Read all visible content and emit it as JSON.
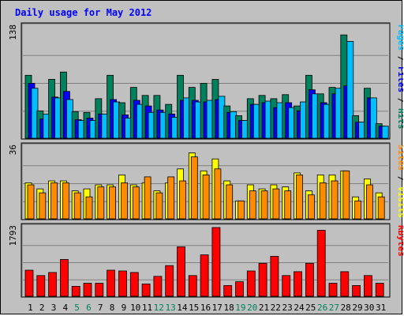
{
  "chart_data": {
    "type": "bar",
    "title": "Daily usage for May 2012",
    "categories": [
      "1",
      "2",
      "3",
      "4",
      "5",
      "6",
      "7",
      "8",
      "9",
      "10",
      "11",
      "12",
      "13",
      "14",
      "15",
      "16",
      "17",
      "18",
      "19",
      "20",
      "21",
      "22",
      "23",
      "24",
      "25",
      "26",
      "27",
      "28",
      "29",
      "30",
      "31"
    ],
    "weekend_days": [
      "5",
      "6",
      "12",
      "13",
      "19",
      "20",
      "26",
      "27"
    ],
    "grid": true,
    "panels": [
      {
        "id": "top",
        "ymax_label": "138",
        "ymax": 138,
        "series": [
          {
            "name": "Hits",
            "color": "#00805c",
            "values": [
              78,
              34,
              73,
              82,
              33,
              32,
              49,
              78,
              44,
              63,
              53,
              53,
              42,
              78,
              63,
              68,
              73,
              40,
              28,
              49,
              53,
              49,
              54,
              40,
              78,
              55,
              63,
              128,
              28,
              62,
              18
            ]
          },
          {
            "name": "Files",
            "color": "#0000ff",
            "values": [
              68,
              24,
              51,
              58,
              23,
              25,
              30,
              48,
              29,
              47,
              40,
              35,
              30,
              47,
              47,
              45,
              48,
              32,
              22,
              42,
              44,
              38,
              44,
              34,
              60,
              44,
              55,
              65,
              20,
              50,
              15
            ]
          },
          {
            "name": "Pages",
            "color": "#00bfff",
            "values": [
              62,
              30,
              50,
              48,
              22,
              22,
              30,
              45,
              25,
              42,
              32,
              32,
              26,
              50,
              45,
              47,
              52,
              33,
              22,
              42,
              46,
              44,
              38,
              45,
              55,
              42,
              62,
              120,
              20,
              50,
              15
            ]
          }
        ]
      },
      {
        "id": "middle",
        "ymax_label": "36",
        "ymax": 36,
        "series": [
          {
            "name": "Visits",
            "color": "#ffff00",
            "values": [
              18,
              15,
              19,
              19,
              14,
              15,
              17,
              17,
              22,
              17,
              18,
              14,
              18,
              25,
              33,
              24,
              30,
              19,
              9,
              17,
              15,
              17,
              16,
              23,
              14,
              22,
              22,
              24,
              11,
              20,
              13
            ]
          },
          {
            "name": "Sites",
            "color": "#ff8c00",
            "values": [
              17,
              13,
              18,
              18,
              13,
              11,
              16,
              16,
              18,
              16,
              21,
              13,
              21,
              19,
              31,
              22,
              25,
              17,
              9,
              14,
              14,
              15,
              14,
              22,
              12,
              18,
              19,
              24,
              9,
              17,
              11
            ]
          }
        ]
      },
      {
        "id": "bottom",
        "ymax_label": "1793",
        "ymax": 1793,
        "series": [
          {
            "name": "KBytes",
            "color": "#ff0000",
            "values": [
              680,
              540,
              620,
              960,
              260,
              340,
              340,
              680,
              660,
              620,
              320,
              520,
              800,
              1290,
              540,
              1080,
              1793,
              280,
              380,
              660,
              860,
              1040,
              540,
              640,
              860,
              1720,
              340,
              640,
              280,
              540,
              340
            ]
          }
        ]
      }
    ],
    "right_labels": [
      {
        "panel": "top",
        "parts": [
          {
            "text": "Pages",
            "color": "#00bfff"
          },
          {
            "text": " / ",
            "color": "#000000"
          },
          {
            "text": "Files",
            "color": "#0000ff"
          },
          {
            "text": " / ",
            "color": "#000000"
          },
          {
            "text": "Hits",
            "color": "#00805c"
          }
        ]
      },
      {
        "panel": "middle",
        "parts": [
          {
            "text": "Sites",
            "color": "#ff8c00"
          },
          {
            "text": " / ",
            "color": "#000000"
          },
          {
            "text": "Visits",
            "color": "#ffff00"
          }
        ]
      },
      {
        "panel": "bottom",
        "parts": [
          {
            "text": "KBytes",
            "color": "#ff0000"
          }
        ]
      }
    ],
    "colors": {
      "background": "#c0c0c0",
      "title": "#0000ff",
      "weekday_label": "#000000",
      "weekend_label": "#00805c"
    }
  }
}
